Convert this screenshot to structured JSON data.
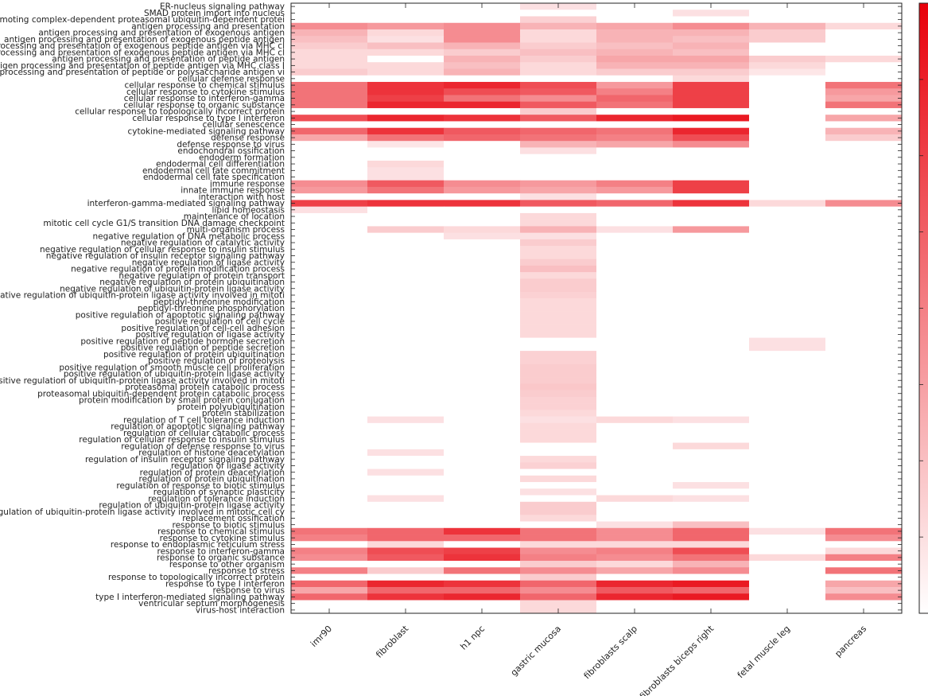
{
  "chart_data": {
    "type": "heatmap",
    "rows": [
      "ER-nucleus signaling pathway",
      "SMAD protein import into nucleus",
      "anaphase-promoting complex-dependent proteasomal ubiquitin-dependent protei",
      "antigen processing and presentation",
      "antigen processing and presentation of exogenous antigen",
      "antigen processing and presentation of exogenous peptide antigen",
      "antigen processing and presentation of exogenous peptide antigen via MHC cl",
      "antigen processing and presentation of exogenous peptide antigen via MHC cl",
      "antigen processing and presentation of peptide antigen",
      "antigen processing and presentation of peptide antigen via MHC class I",
      "antigen processing and presentation of peptide or polysaccharide antigen vi",
      "cellular defense response",
      "cellular response to chemical stimulus",
      "cellular response to cytokine stimulus",
      "cellular response to interferon-gamma",
      "cellular response to organic substance",
      "cellular response to topologically incorrect protein",
      "cellular response to type I interferon",
      "cellular senescence",
      "cytokine-mediated signaling pathway",
      "defense response",
      "defense response to virus",
      "endochondral ossification",
      "endoderm formation",
      "endodermal cell differentiation",
      "endodermal cell fate commitment",
      "endodermal cell fate specification",
      "immune response",
      "innate immune response",
      "interaction with host",
      "interferon-gamma-mediated signaling pathway",
      "lipid homeostasis",
      "maintenance of location",
      "mitotic cell cycle G1/S transition DNA damage checkpoint",
      "multi-organism process",
      "negative regulation of DNA metabolic process",
      "negative regulation of catalytic activity",
      "negative regulation of cellular response to insulin stimulus",
      "negative regulation of insulin receptor signaling pathway",
      "negative regulation of ligase activity",
      "negative regulation of protein modification process",
      "negative regulation of protein transport",
      "negative regulation of protein ubiquitination",
      "negative regulation of ubiquitin-protein ligase activity",
      "negative regulation of ubiquitin-protein ligase activity involved in mitoti",
      "peptidyl-threonine modification",
      "peptidyl-threonine phosphorylation",
      "positive regulation of apoptotic signaling pathway",
      "positive regulation of cell cycle",
      "positive regulation of cell-cell adhesion",
      "positive regulation of ligase activity",
      "positive regulation of peptide hormone secretion",
      "positive regulation of peptide secretion",
      "positive regulation of protein ubiquitination",
      "positive regulation of proteolysis",
      "positive regulation of smooth muscle cell proliferation",
      "positive regulation of ubiquitin-protein ligase activity",
      "positive regulation of ubiquitin-protein ligase activity involved in mitoti",
      "proteasomal protein catabolic process",
      "proteasomal ubiquitin-dependent protein catabolic process",
      "protein modification by small protein conjugation",
      "protein polyubiquitination",
      "protein stabilization",
      "regulation of T cell tolerance induction",
      "regulation of apoptotic signaling pathway",
      "regulation of cellular catabolic process",
      "regulation of cellular response to insulin stimulus",
      "regulation of defense response to virus",
      "regulation of histone deacetylation",
      "regulation of insulin receptor signaling pathway",
      "regulation of ligase activity",
      "regulation of protein deacetylation",
      "regulation of protein ubiquitination",
      "regulation of response to biotic stimulus",
      "regulation of synaptic plasticity",
      "regulation of tolerance induction",
      "regulation of ubiquitin-protein ligase activity",
      "regulation of ubiquitin-protein ligase activity involved in mitotic cell cy",
      "replacement ossification",
      "response to biotic stimulus",
      "response to chemical stimulus",
      "response to cytokine stimulus",
      "response to endoplasmic reticulum stress",
      "response to interferon-gamma",
      "response to organic substance",
      "response to other organism",
      "response to stress",
      "response to topologically incorrect protein",
      "response to type I interferon",
      "response to virus",
      "type I interferon-mediated signaling pathway",
      "ventricular septum morphogenesis",
      "virus-host interaction"
    ],
    "columns": [
      "imr90",
      "fibroblast",
      "h1 npc",
      "gastric mucosa",
      "fibroblasts scalp",
      "fibroblasts biceps right",
      "fetal muscle leg",
      "pancreas"
    ],
    "values": [
      [
        0,
        0,
        0,
        0.12,
        0,
        0,
        0,
        0
      ],
      [
        0,
        0,
        0,
        0,
        0,
        0.12,
        0,
        0
      ],
      [
        0,
        0,
        0,
        0.18,
        0,
        0,
        0,
        0
      ],
      [
        0.45,
        0.4,
        0.45,
        0.3,
        0.35,
        0.45,
        0.3,
        0.15
      ],
      [
        0.3,
        0.15,
        0.45,
        0.15,
        0.3,
        0.3,
        0.2,
        0
      ],
      [
        0.25,
        0.12,
        0.45,
        0.15,
        0.3,
        0.25,
        0.2,
        0
      ],
      [
        0.2,
        0.25,
        0.3,
        0.2,
        0.25,
        0.3,
        0,
        0
      ],
      [
        0.15,
        0.15,
        0.2,
        0.25,
        0.3,
        0.25,
        0,
        0
      ],
      [
        0.15,
        0,
        0.3,
        0.2,
        0.35,
        0.35,
        0.2,
        0.15
      ],
      [
        0.15,
        0.15,
        0.25,
        0.15,
        0.3,
        0.3,
        0.15,
        0
      ],
      [
        0.2,
        0.15,
        0.3,
        0.15,
        0.2,
        0.2,
        0.1,
        0
      ],
      [
        0,
        0,
        0,
        0,
        0,
        0.15,
        0,
        0
      ],
      [
        0.55,
        0.8,
        0.85,
        0.7,
        0.4,
        0.75,
        0,
        0.55
      ],
      [
        0.55,
        0.8,
        0.7,
        0.65,
        0.5,
        0.75,
        0,
        0.4
      ],
      [
        0.55,
        0.75,
        0.55,
        0.45,
        0.6,
        0.75,
        0,
        0.35
      ],
      [
        0.55,
        0.85,
        0.85,
        0.65,
        0.55,
        0.75,
        0,
        0.55
      ],
      [
        0,
        0,
        0,
        0.2,
        0,
        0,
        0,
        0
      ],
      [
        0.7,
        0.85,
        0.8,
        0.65,
        0.85,
        0.9,
        0,
        0.35
      ],
      [
        0,
        0,
        0,
        0,
        0,
        0,
        0,
        0
      ],
      [
        0.6,
        0.8,
        0.65,
        0.6,
        0.55,
        0.85,
        0,
        0.3
      ],
      [
        0.35,
        0.55,
        0.6,
        0.55,
        0.5,
        0.7,
        0,
        0.2
      ],
      [
        0,
        0.1,
        0,
        0.3,
        0.35,
        0.45,
        0,
        0
      ],
      [
        0,
        0,
        0,
        0.12,
        0,
        0,
        0,
        0
      ],
      [
        0,
        0,
        0,
        0,
        0,
        0,
        0,
        0
      ],
      [
        0,
        0.15,
        0,
        0,
        0,
        0,
        0,
        0
      ],
      [
        0,
        0.12,
        0,
        0,
        0,
        0,
        0,
        0
      ],
      [
        0,
        0.12,
        0,
        0,
        0,
        0,
        0,
        0
      ],
      [
        0.45,
        0.65,
        0.45,
        0.4,
        0.5,
        0.75,
        0,
        0
      ],
      [
        0.4,
        0.55,
        0.4,
        0.35,
        0.4,
        0.75,
        0,
        0
      ],
      [
        0,
        0,
        0,
        0.12,
        0,
        0,
        0,
        0
      ],
      [
        0.75,
        0.8,
        0.8,
        0.65,
        0.6,
        0.8,
        0.15,
        0.45
      ],
      [
        0.12,
        0,
        0,
        0,
        0,
        0,
        0,
        0
      ],
      [
        0,
        0,
        0,
        0.15,
        0,
        0,
        0,
        0
      ],
      [
        0,
        0,
        0,
        0.15,
        0,
        0,
        0,
        0
      ],
      [
        0,
        0.2,
        0.15,
        0.3,
        0.12,
        0.4,
        0,
        0
      ],
      [
        0,
        0,
        0.12,
        0.12,
        0,
        0,
        0,
        0
      ],
      [
        0,
        0,
        0,
        0.2,
        0,
        0,
        0,
        0
      ],
      [
        0,
        0,
        0,
        0.15,
        0,
        0,
        0,
        0
      ],
      [
        0,
        0,
        0,
        0.15,
        0,
        0,
        0,
        0
      ],
      [
        0,
        0,
        0,
        0.2,
        0,
        0,
        0,
        0
      ],
      [
        0,
        0,
        0,
        0.25,
        0,
        0,
        0,
        0
      ],
      [
        0,
        0,
        0,
        0.15,
        0,
        0,
        0,
        0
      ],
      [
        0,
        0,
        0,
        0.2,
        0,
        0,
        0,
        0
      ],
      [
        0,
        0,
        0,
        0.2,
        0,
        0,
        0,
        0
      ],
      [
        0,
        0,
        0,
        0.18,
        0,
        0,
        0,
        0
      ],
      [
        0,
        0,
        0,
        0.15,
        0,
        0,
        0,
        0
      ],
      [
        0,
        0,
        0,
        0.15,
        0,
        0,
        0,
        0
      ],
      [
        0,
        0,
        0,
        0.15,
        0,
        0,
        0,
        0
      ],
      [
        0,
        0,
        0,
        0.15,
        0,
        0,
        0,
        0
      ],
      [
        0,
        0,
        0,
        0.15,
        0,
        0,
        0,
        0
      ],
      [
        0,
        0,
        0,
        0.15,
        0,
        0,
        0,
        0
      ],
      [
        0,
        0,
        0,
        0,
        0,
        0,
        0.12,
        0
      ],
      [
        0,
        0,
        0,
        0,
        0,
        0,
        0.12,
        0
      ],
      [
        0,
        0,
        0,
        0.18,
        0,
        0,
        0,
        0
      ],
      [
        0,
        0,
        0,
        0.18,
        0,
        0,
        0,
        0
      ],
      [
        0,
        0,
        0,
        0.2,
        0,
        0,
        0,
        0
      ],
      [
        0,
        0,
        0,
        0.2,
        0,
        0,
        0,
        0
      ],
      [
        0,
        0,
        0,
        0.2,
        0,
        0,
        0,
        0
      ],
      [
        0,
        0,
        0,
        0.22,
        0,
        0,
        0,
        0
      ],
      [
        0,
        0,
        0,
        0.2,
        0,
        0,
        0,
        0
      ],
      [
        0,
        0,
        0,
        0.18,
        0,
        0,
        0,
        0
      ],
      [
        0,
        0,
        0,
        0.18,
        0,
        0,
        0,
        0
      ],
      [
        0,
        0,
        0,
        0.15,
        0,
        0,
        0,
        0
      ],
      [
        0,
        0.12,
        0,
        0.12,
        0.15,
        0.12,
        0,
        0
      ],
      [
        0,
        0,
        0,
        0.15,
        0,
        0,
        0,
        0
      ],
      [
        0,
        0,
        0,
        0.15,
        0,
        0,
        0,
        0
      ],
      [
        0,
        0,
        0,
        0.15,
        0,
        0,
        0,
        0
      ],
      [
        0,
        0,
        0,
        0,
        0,
        0.15,
        0,
        0
      ],
      [
        0,
        0.12,
        0,
        0,
        0,
        0,
        0,
        0
      ],
      [
        0,
        0,
        0,
        0.15,
        0,
        0,
        0,
        0
      ],
      [
        0,
        0,
        0,
        0.18,
        0,
        0,
        0,
        0
      ],
      [
        0,
        0.12,
        0,
        0,
        0,
        0,
        0,
        0
      ],
      [
        0,
        0,
        0,
        0.15,
        0,
        0,
        0,
        0
      ],
      [
        0,
        0,
        0,
        0,
        0,
        0.12,
        0,
        0
      ],
      [
        0,
        0,
        0,
        0.12,
        0,
        0,
        0,
        0
      ],
      [
        0,
        0.12,
        0,
        0,
        0.15,
        0.12,
        0,
        0
      ],
      [
        0,
        0,
        0,
        0.2,
        0,
        0,
        0,
        0
      ],
      [
        0,
        0,
        0,
        0.2,
        0,
        0,
        0,
        0
      ],
      [
        0,
        0,
        0,
        0.15,
        0,
        0,
        0,
        0
      ],
      [
        0,
        0,
        0,
        0,
        0.12,
        0.25,
        0,
        0
      ],
      [
        0.55,
        0.6,
        0.8,
        0.55,
        0.45,
        0.6,
        0.12,
        0.55
      ],
      [
        0.5,
        0.6,
        0.6,
        0.55,
        0.45,
        0.6,
        0,
        0.45
      ],
      [
        0,
        0.15,
        0,
        0.15,
        0.15,
        0.15,
        0,
        0
      ],
      [
        0.5,
        0.7,
        0.75,
        0.45,
        0.5,
        0.7,
        0,
        0.15
      ],
      [
        0.45,
        0.65,
        0.8,
        0.5,
        0.45,
        0.55,
        0.15,
        0.5
      ],
      [
        0,
        0,
        0,
        0.2,
        0.15,
        0.3,
        0,
        0
      ],
      [
        0.5,
        0.2,
        0.55,
        0.45,
        0.35,
        0.45,
        0,
        0.55
      ],
      [
        0,
        0,
        0,
        0.2,
        0,
        0,
        0,
        0
      ],
      [
        0.6,
        0.85,
        0.8,
        0.6,
        0.85,
        0.9,
        0,
        0.35
      ],
      [
        0.35,
        0.6,
        0.6,
        0.45,
        0.65,
        0.6,
        0,
        0.25
      ],
      [
        0.6,
        0.8,
        0.85,
        0.6,
        0.85,
        0.9,
        0,
        0.45
      ],
      [
        0,
        0,
        0,
        0.15,
        0,
        0,
        0,
        0
      ],
      [
        0,
        0,
        0,
        0.15,
        0,
        0,
        0,
        0
      ]
    ],
    "colorscale": [
      "#ffffff",
      "#e8000a"
    ],
    "colorbar": true,
    "grid": false
  }
}
